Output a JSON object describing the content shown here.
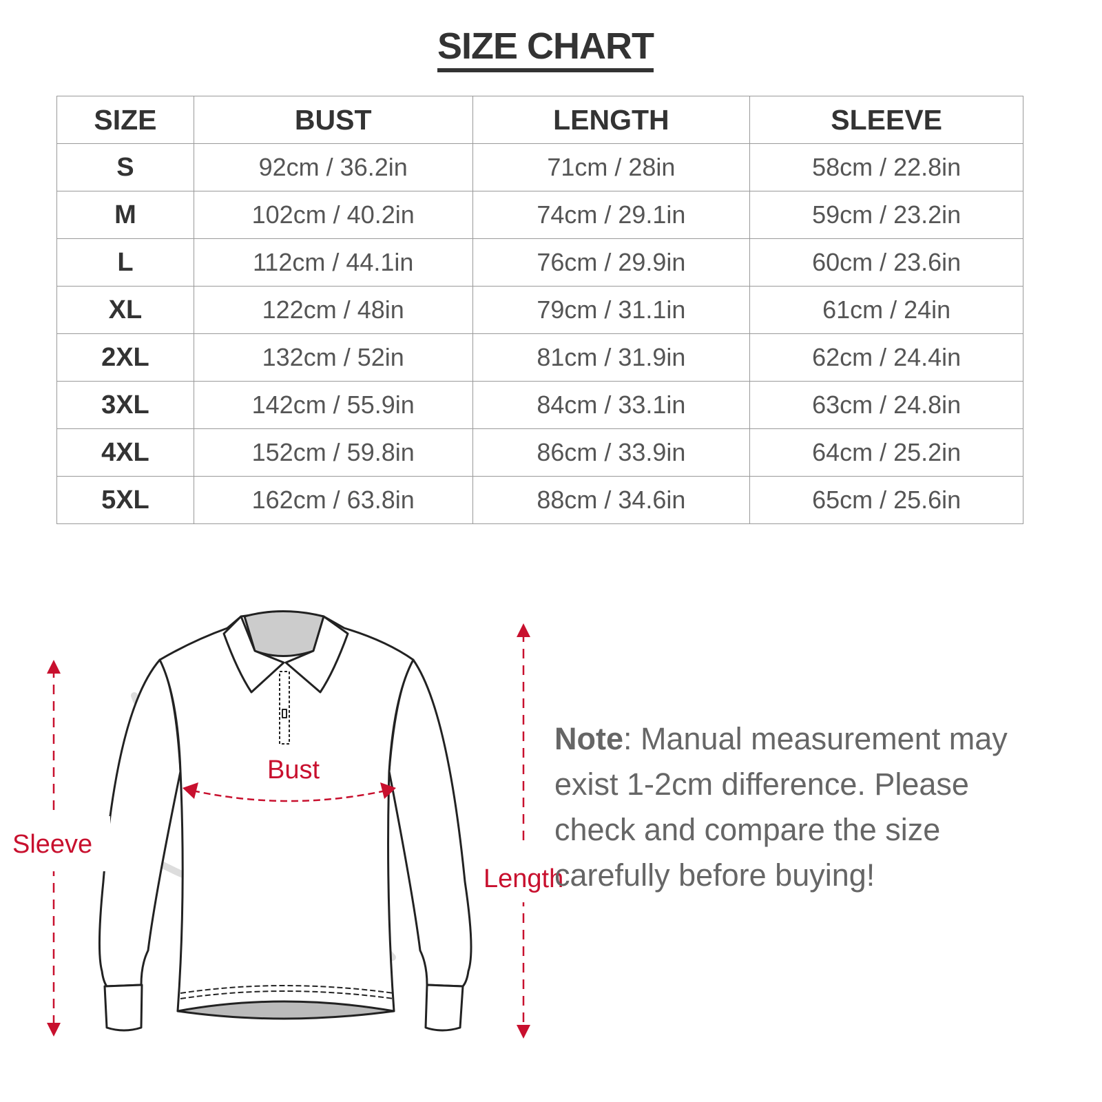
{
  "title": "SIZE CHART",
  "table": {
    "headers": [
      "SIZE",
      "BUST",
      "LENGTH",
      "SLEEVE"
    ],
    "rows": [
      [
        "S",
        "92cm / 36.2in",
        "71cm / 28in",
        "58cm / 22.8in"
      ],
      [
        "M",
        "102cm / 40.2in",
        "74cm / 29.1in",
        "59cm / 23.2in"
      ],
      [
        "L",
        "112cm / 44.1in",
        "76cm / 29.9in",
        "60cm / 23.6in"
      ],
      [
        "XL",
        "122cm / 48in",
        "79cm / 31.1in",
        "61cm / 24in"
      ],
      [
        "2XL",
        "132cm / 52in",
        "81cm / 31.9in",
        "62cm / 24.4in"
      ],
      [
        "3XL",
        "142cm / 55.9in",
        "84cm / 33.1in",
        "63cm / 24.8in"
      ],
      [
        "4XL",
        "152cm / 59.8in",
        "86cm / 33.9in",
        "64cm / 25.2in"
      ],
      [
        "5XL",
        "162cm / 63.8in",
        "88cm / 34.6in",
        "65cm / 25.6in"
      ]
    ]
  },
  "diagram": {
    "bust_label": "Bust",
    "sleeve_label": "Sleeve",
    "length_label": "Length",
    "accent_color": "#c8102e"
  },
  "note": {
    "label": "Note",
    "text": ": Manual measurement may exist 1-2cm difference. Please check and compare the size carefully before buying!"
  }
}
